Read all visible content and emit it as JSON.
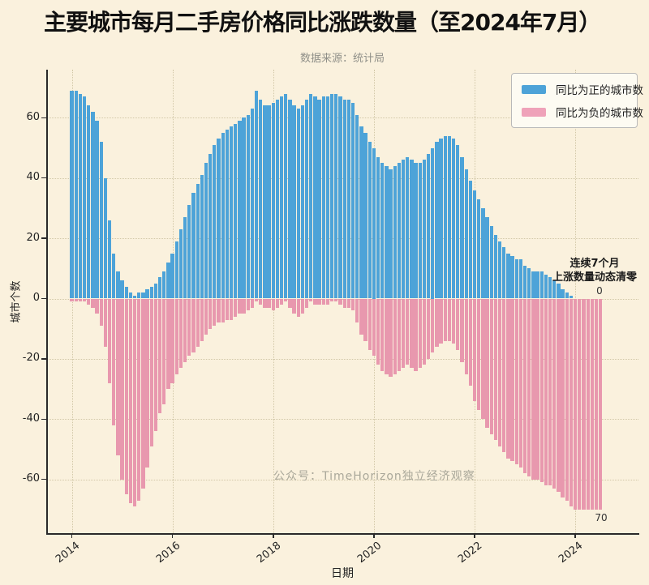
{
  "title": "主要城市每月二手房价格同比涨跌数量（至2024年7月）",
  "subtitle": "数据来源：统计局",
  "watermark": "公众号：TimeHorizon独立经济观察",
  "annotation": {
    "line1": "连续7个月",
    "line2": "上涨数量动态清零",
    "zero_label": "0",
    "seventy_label": "70"
  },
  "legend": [
    {
      "label": "同比为正的城市数",
      "color": "#4da3d8"
    },
    {
      "label": "同比为负的城市数",
      "color": "#efa2b9"
    }
  ],
  "colors": {
    "background": "#faf1dd",
    "bar_positive": "#4da3d8",
    "bar_negative": "#e898ae",
    "grid": "#d2c8a8",
    "axis": "#2a2a2a"
  },
  "chart_data": {
    "type": "bar",
    "title": "主要城市每月二手房价格同比涨跌数量（至2024年7月）",
    "xlabel": "日期",
    "ylabel": "城市个数",
    "frequency": "monthly",
    "x_start": "2014-01",
    "x_end": "2024-07",
    "x_tick_labels": [
      "2014",
      "2016",
      "2018",
      "2020",
      "2022",
      "2024"
    ],
    "y_ticks": [
      60,
      40,
      20,
      0,
      -20,
      -40,
      -60
    ],
    "ylim": [
      -75,
      76
    ],
    "grid": true,
    "legend_position": "upper right",
    "series": [
      {
        "name": "同比为正的城市数",
        "color": "#4da3d8",
        "values": [
          69,
          69,
          68,
          67,
          64,
          62,
          59,
          52,
          40,
          26,
          15,
          9,
          6,
          4,
          2,
          1,
          2,
          2,
          3,
          4,
          5,
          7,
          9,
          12,
          15,
          19,
          23,
          27,
          31,
          35,
          38,
          41,
          45,
          48,
          51,
          53,
          55,
          56,
          57,
          58,
          59,
          60,
          61,
          63,
          69,
          66,
          64,
          64,
          65,
          66,
          67,
          68,
          66,
          64,
          63,
          64,
          66,
          68,
          67,
          66,
          67,
          67,
          68,
          68,
          67,
          66,
          66,
          65,
          61,
          57,
          55,
          52,
          50,
          47,
          45,
          44,
          43,
          44,
          45,
          46,
          47,
          46,
          45,
          45,
          46,
          48,
          50,
          52,
          53,
          54,
          54,
          53,
          51,
          47,
          43,
          39,
          36,
          33,
          30,
          27,
          24,
          21,
          19,
          17,
          15,
          14,
          13,
          13,
          11,
          10,
          9,
          9,
          9,
          8,
          7,
          6,
          5,
          3,
          2,
          1,
          0,
          0,
          0,
          0,
          0,
          0,
          0
        ]
      },
      {
        "name": "同比为负的城市数",
        "color": "#e898ae",
        "values": [
          -1,
          -1,
          -1,
          -1,
          -2,
          -3,
          -5,
          -9,
          -16,
          -28,
          -42,
          -52,
          -60,
          -65,
          -68,
          -69,
          -67,
          -63,
          -56,
          -49,
          -44,
          -38,
          -35,
          -30,
          -28,
          -25,
          -23,
          -21,
          -19,
          -18,
          -16,
          -14,
          -12,
          -10,
          -9,
          -8,
          -8,
          -7,
          -7,
          -6,
          -5,
          -5,
          -4,
          -3,
          -1,
          -2,
          -3,
          -3,
          -4,
          -3,
          -2,
          -1,
          -3,
          -5,
          -6,
          -5,
          -3,
          -1,
          -2,
          -2,
          -2,
          -2,
          -1,
          -1,
          -2,
          -3,
          -3,
          -4,
          -8,
          -12,
          -14,
          -17,
          -19,
          -22,
          -24,
          -25,
          -26,
          -25,
          -24,
          -23,
          -22,
          -23,
          -24,
          -23,
          -22,
          -20,
          -18,
          -16,
          -15,
          -14,
          -14,
          -15,
          -17,
          -21,
          -25,
          -29,
          -34,
          -37,
          -40,
          -43,
          -45,
          -47,
          -49,
          -51,
          -53,
          -54,
          -55,
          -56,
          -58,
          -59,
          -60,
          -60,
          -61,
          -62,
          -62,
          -63,
          -64,
          -66,
          -67,
          -69,
          -70,
          -70,
          -70,
          -70,
          -70,
          -70,
          -70
        ]
      }
    ]
  }
}
